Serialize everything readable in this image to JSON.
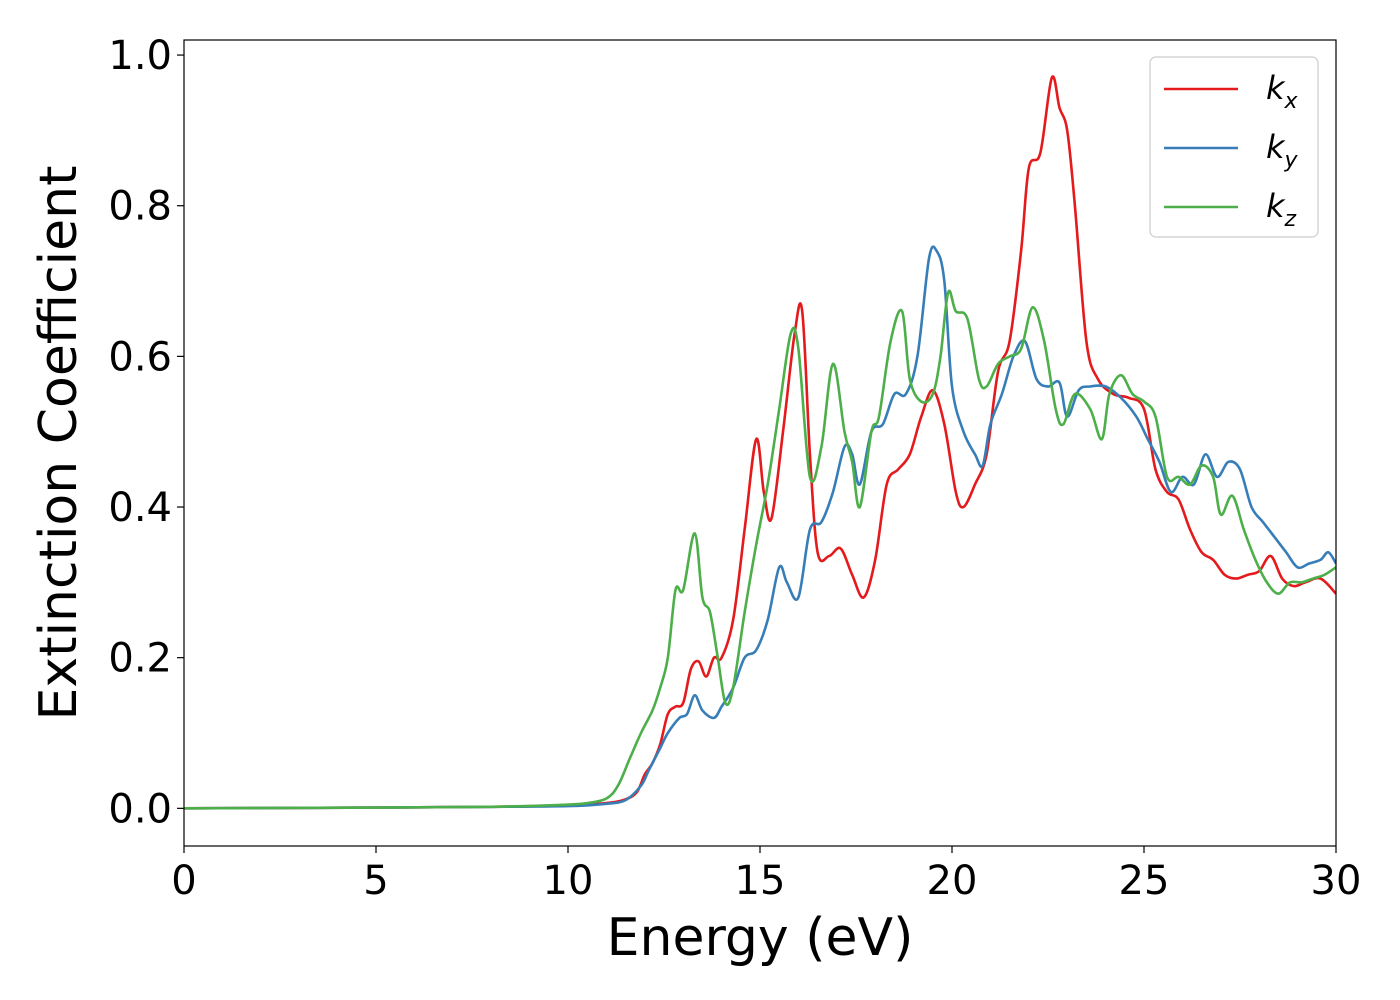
{
  "chart_data": {
    "type": "line",
    "title": "",
    "xlabel": "Energy (eV)",
    "ylabel": "Extinction Coefficient",
    "xlim": [
      0,
      30
    ],
    "ylim": [
      -0.05,
      1.02
    ],
    "xticks": [
      0,
      5,
      10,
      15,
      20,
      25,
      30
    ],
    "yticks": [
      0.0,
      0.2,
      0.4,
      0.6,
      0.8,
      1.0
    ],
    "xtick_labels": [
      "0",
      "5",
      "10",
      "15",
      "20",
      "25",
      "30"
    ],
    "ytick_labels": [
      "0.0",
      "0.2",
      "0.4",
      "0.6",
      "0.8",
      "1.0"
    ],
    "grid": false,
    "legend_position": "top-right",
    "series": [
      {
        "name": "k",
        "subscript": "x",
        "color": "#e41a1c",
        "points": [
          [
            0,
            0.0
          ],
          [
            5,
            0.001
          ],
          [
            8,
            0.002
          ],
          [
            10,
            0.004
          ],
          [
            11,
            0.007
          ],
          [
            11.5,
            0.012
          ],
          [
            11.8,
            0.022
          ],
          [
            12.0,
            0.045
          ],
          [
            12.2,
            0.06
          ],
          [
            12.4,
            0.085
          ],
          [
            12.6,
            0.125
          ],
          [
            12.8,
            0.135
          ],
          [
            13.0,
            0.14
          ],
          [
            13.2,
            0.185
          ],
          [
            13.4,
            0.195
          ],
          [
            13.6,
            0.175
          ],
          [
            13.8,
            0.2
          ],
          [
            14.0,
            0.2
          ],
          [
            14.3,
            0.25
          ],
          [
            14.6,
            0.37
          ],
          [
            14.9,
            0.49
          ],
          [
            15.1,
            0.42
          ],
          [
            15.3,
            0.385
          ],
          [
            15.6,
            0.5
          ],
          [
            15.9,
            0.63
          ],
          [
            16.1,
            0.66
          ],
          [
            16.3,
            0.47
          ],
          [
            16.5,
            0.34
          ],
          [
            16.8,
            0.335
          ],
          [
            17.1,
            0.345
          ],
          [
            17.4,
            0.31
          ],
          [
            17.7,
            0.28
          ],
          [
            18.0,
            0.33
          ],
          [
            18.3,
            0.43
          ],
          [
            18.6,
            0.45
          ],
          [
            18.9,
            0.47
          ],
          [
            19.2,
            0.52
          ],
          [
            19.5,
            0.555
          ],
          [
            19.8,
            0.51
          ],
          [
            20.1,
            0.42
          ],
          [
            20.3,
            0.4
          ],
          [
            20.6,
            0.43
          ],
          [
            20.9,
            0.47
          ],
          [
            21.2,
            0.58
          ],
          [
            21.5,
            0.62
          ],
          [
            21.8,
            0.74
          ],
          [
            22.0,
            0.85
          ],
          [
            22.3,
            0.87
          ],
          [
            22.6,
            0.97
          ],
          [
            22.8,
            0.93
          ],
          [
            23.0,
            0.9
          ],
          [
            23.2,
            0.8
          ],
          [
            23.5,
            0.62
          ],
          [
            23.8,
            0.57
          ],
          [
            24.2,
            0.55
          ],
          [
            24.6,
            0.545
          ],
          [
            25.0,
            0.53
          ],
          [
            25.3,
            0.45
          ],
          [
            25.6,
            0.42
          ],
          [
            25.9,
            0.41
          ],
          [
            26.2,
            0.37
          ],
          [
            26.5,
            0.34
          ],
          [
            26.8,
            0.33
          ],
          [
            27.1,
            0.31
          ],
          [
            27.4,
            0.305
          ],
          [
            27.7,
            0.31
          ],
          [
            28.0,
            0.315
          ],
          [
            28.3,
            0.335
          ],
          [
            28.6,
            0.305
          ],
          [
            28.9,
            0.295
          ],
          [
            29.2,
            0.3
          ],
          [
            29.6,
            0.305
          ],
          [
            30.0,
            0.285
          ]
        ]
      },
      {
        "name": "k",
        "subscript": "y",
        "color": "#377eb8",
        "points": [
          [
            0,
            0.0
          ],
          [
            5,
            0.001
          ],
          [
            8,
            0.002
          ],
          [
            10,
            0.003
          ],
          [
            11,
            0.006
          ],
          [
            11.5,
            0.011
          ],
          [
            11.9,
            0.03
          ],
          [
            12.1,
            0.05
          ],
          [
            12.4,
            0.08
          ],
          [
            12.6,
            0.1
          ],
          [
            12.9,
            0.12
          ],
          [
            13.1,
            0.125
          ],
          [
            13.3,
            0.15
          ],
          [
            13.5,
            0.13
          ],
          [
            13.8,
            0.12
          ],
          [
            14.0,
            0.135
          ],
          [
            14.3,
            0.16
          ],
          [
            14.6,
            0.2
          ],
          [
            14.9,
            0.21
          ],
          [
            15.2,
            0.25
          ],
          [
            15.5,
            0.32
          ],
          [
            15.7,
            0.3
          ],
          [
            16.0,
            0.28
          ],
          [
            16.3,
            0.37
          ],
          [
            16.6,
            0.38
          ],
          [
            16.9,
            0.42
          ],
          [
            17.2,
            0.48
          ],
          [
            17.4,
            0.47
          ],
          [
            17.6,
            0.43
          ],
          [
            17.9,
            0.5
          ],
          [
            18.2,
            0.51
          ],
          [
            18.5,
            0.55
          ],
          [
            18.8,
            0.55
          ],
          [
            19.1,
            0.6
          ],
          [
            19.4,
            0.73
          ],
          [
            19.6,
            0.74
          ],
          [
            19.8,
            0.7
          ],
          [
            20.0,
            0.56
          ],
          [
            20.3,
            0.5
          ],
          [
            20.6,
            0.47
          ],
          [
            20.8,
            0.455
          ],
          [
            21.0,
            0.51
          ],
          [
            21.3,
            0.55
          ],
          [
            21.6,
            0.6
          ],
          [
            21.9,
            0.62
          ],
          [
            22.2,
            0.57
          ],
          [
            22.5,
            0.56
          ],
          [
            22.8,
            0.565
          ],
          [
            23.0,
            0.52
          ],
          [
            23.3,
            0.555
          ],
          [
            23.6,
            0.56
          ],
          [
            24.0,
            0.56
          ],
          [
            24.4,
            0.545
          ],
          [
            24.8,
            0.52
          ],
          [
            25.1,
            0.49
          ],
          [
            25.4,
            0.46
          ],
          [
            25.7,
            0.42
          ],
          [
            26.0,
            0.44
          ],
          [
            26.3,
            0.43
          ],
          [
            26.6,
            0.47
          ],
          [
            26.9,
            0.44
          ],
          [
            27.2,
            0.46
          ],
          [
            27.5,
            0.45
          ],
          [
            27.8,
            0.4
          ],
          [
            28.1,
            0.38
          ],
          [
            28.4,
            0.36
          ],
          [
            28.7,
            0.34
          ],
          [
            29.0,
            0.32
          ],
          [
            29.3,
            0.325
          ],
          [
            29.6,
            0.33
          ],
          [
            29.8,
            0.34
          ],
          [
            30.0,
            0.325
          ]
        ]
      },
      {
        "name": "k",
        "subscript": "z",
        "color": "#4daf4a",
        "points": [
          [
            0,
            0.0
          ],
          [
            5,
            0.001
          ],
          [
            8,
            0.002
          ],
          [
            10,
            0.005
          ],
          [
            10.5,
            0.007
          ],
          [
            11.0,
            0.013
          ],
          [
            11.3,
            0.03
          ],
          [
            11.6,
            0.065
          ],
          [
            11.9,
            0.1
          ],
          [
            12.2,
            0.13
          ],
          [
            12.4,
            0.16
          ],
          [
            12.6,
            0.2
          ],
          [
            12.8,
            0.29
          ],
          [
            13.0,
            0.29
          ],
          [
            13.3,
            0.365
          ],
          [
            13.5,
            0.28
          ],
          [
            13.7,
            0.26
          ],
          [
            13.9,
            0.2
          ],
          [
            14.1,
            0.14
          ],
          [
            14.3,
            0.16
          ],
          [
            14.6,
            0.26
          ],
          [
            14.9,
            0.35
          ],
          [
            15.2,
            0.43
          ],
          [
            15.5,
            0.53
          ],
          [
            15.8,
            0.63
          ],
          [
            16.0,
            0.61
          ],
          [
            16.3,
            0.44
          ],
          [
            16.6,
            0.48
          ],
          [
            16.9,
            0.59
          ],
          [
            17.2,
            0.5
          ],
          [
            17.4,
            0.46
          ],
          [
            17.6,
            0.4
          ],
          [
            17.9,
            0.5
          ],
          [
            18.1,
            0.52
          ],
          [
            18.4,
            0.62
          ],
          [
            18.7,
            0.66
          ],
          [
            18.9,
            0.57
          ],
          [
            19.2,
            0.54
          ],
          [
            19.5,
            0.55
          ],
          [
            19.7,
            0.6
          ],
          [
            19.9,
            0.685
          ],
          [
            20.1,
            0.66
          ],
          [
            20.4,
            0.65
          ],
          [
            20.7,
            0.57
          ],
          [
            20.9,
            0.56
          ],
          [
            21.2,
            0.59
          ],
          [
            21.5,
            0.6
          ],
          [
            21.8,
            0.61
          ],
          [
            22.1,
            0.665
          ],
          [
            22.4,
            0.62
          ],
          [
            22.7,
            0.53
          ],
          [
            22.9,
            0.51
          ],
          [
            23.2,
            0.55
          ],
          [
            23.6,
            0.53
          ],
          [
            23.9,
            0.49
          ],
          [
            24.1,
            0.55
          ],
          [
            24.4,
            0.575
          ],
          [
            24.7,
            0.55
          ],
          [
            25.0,
            0.54
          ],
          [
            25.3,
            0.52
          ],
          [
            25.6,
            0.44
          ],
          [
            25.9,
            0.44
          ],
          [
            26.2,
            0.43
          ],
          [
            26.5,
            0.455
          ],
          [
            26.8,
            0.44
          ],
          [
            27.0,
            0.39
          ],
          [
            27.3,
            0.415
          ],
          [
            27.6,
            0.37
          ],
          [
            27.9,
            0.33
          ],
          [
            28.2,
            0.3
          ],
          [
            28.5,
            0.285
          ],
          [
            28.8,
            0.3
          ],
          [
            29.1,
            0.3
          ],
          [
            29.4,
            0.305
          ],
          [
            29.7,
            0.31
          ],
          [
            30.0,
            0.32
          ]
        ]
      }
    ]
  }
}
